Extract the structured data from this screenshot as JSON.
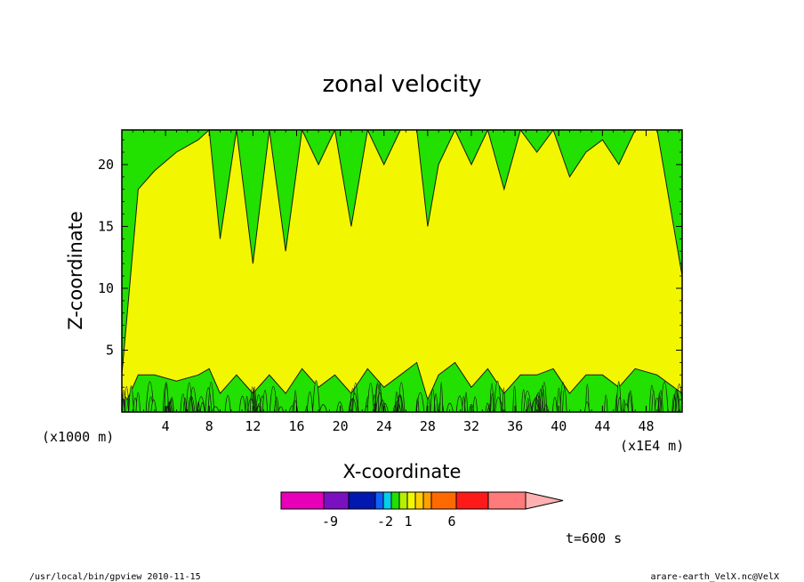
{
  "chart_data": {
    "type": "heatmap",
    "title": "zonal velocity",
    "xlabel": "X-coordinate",
    "ylabel": "Z-coordinate",
    "x_unit_label": "(x1E4 m)",
    "y_unit_label": "(x1000 m)",
    "xlim": [
      0,
      51.3
    ],
    "ylim": [
      0,
      22.8
    ],
    "x_ticks": [
      "4",
      "8",
      "12",
      "16",
      "20",
      "24",
      "28",
      "32",
      "36",
      "40",
      "44",
      "48"
    ],
    "x_tick_values": [
      4,
      8,
      12,
      16,
      20,
      24,
      28,
      32,
      36,
      40,
      44,
      48
    ],
    "y_ticks": [
      "5",
      "10",
      "15",
      "20"
    ],
    "y_tick_values": [
      5,
      10,
      15,
      20
    ],
    "filled_levels": [
      {
        "range": "-2 to 1",
        "color": "#22e000"
      },
      {
        "range": "1 to 2",
        "color": "#f2f700"
      }
    ],
    "column_profile": {
      "x": [
        0,
        1.5,
        3,
        5,
        7,
        8,
        9,
        10.5,
        12,
        13.5,
        15,
        16.5,
        18,
        19.5,
        21,
        22.5,
        24,
        25.5,
        27,
        28,
        29,
        30.5,
        32,
        33.5,
        35,
        36.5,
        38,
        39.5,
        41,
        42.5,
        44,
        45.5,
        47,
        49,
        51.3
      ],
      "yellow_top": [
        3,
        18,
        19.5,
        21,
        22,
        22.8,
        14,
        22.8,
        12,
        22.8,
        13,
        22.8,
        20,
        22.8,
        15,
        22.8,
        20,
        22.8,
        22.8,
        15,
        20,
        22.8,
        20,
        22.8,
        18,
        22.8,
        21,
        22.8,
        19,
        21,
        22,
        20,
        22.8,
        22.8,
        11
      ],
      "green_bottom": [
        0,
        3,
        3,
        2.5,
        3,
        3.5,
        1.5,
        3,
        1.5,
        3,
        1.5,
        3.5,
        2,
        3,
        1.5,
        3.5,
        2,
        3,
        4,
        1,
        3,
        4,
        2,
        3.5,
        1.5,
        3,
        3,
        3.5,
        1.5,
        3,
        3,
        2,
        3.5,
        3,
        1.5
      ]
    },
    "colorbar": {
      "tick_labels": [
        "-9",
        "-2",
        "1",
        "6"
      ],
      "colors": [
        "#e800b8",
        "#7a10c0",
        "#0018b0",
        "#1060ff",
        "#00d0e8",
        "#22e000",
        "#b4f000",
        "#f2f700",
        "#ffd000",
        "#ffa000",
        "#ff6a00",
        "#ff1a1a",
        "#ff7a7a",
        "#ffb0b0"
      ]
    },
    "time_label": "t=600 s",
    "footer_left": "/usr/local/bin/gpview  2010-11-15",
    "footer_right": "arare-earth_VelX.nc@VelX"
  }
}
